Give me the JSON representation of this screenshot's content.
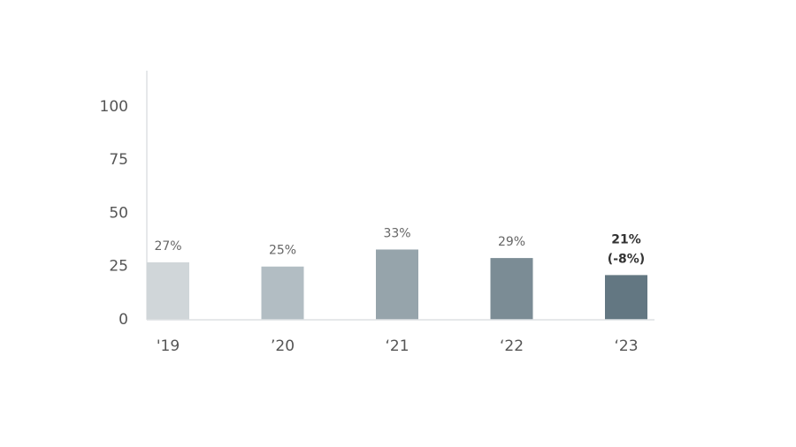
{
  "chart_data": {
    "type": "bar",
    "categories": [
      "'19",
      "’20",
      "‘21",
      "‘22",
      "‘23"
    ],
    "values": [
      27,
      25,
      33,
      29,
      21
    ],
    "value_labels": [
      "27%",
      "25%",
      "33%",
      "29%",
      "21%"
    ],
    "annotation": "(-8%)",
    "colors": [
      "#d0d6d9",
      "#b2bdc3",
      "#96a4ab",
      "#7b8c95",
      "#637782"
    ],
    "ylim": [
      0,
      117
    ],
    "yticks": [
      0,
      25,
      50,
      75,
      100
    ],
    "grid": false
  }
}
